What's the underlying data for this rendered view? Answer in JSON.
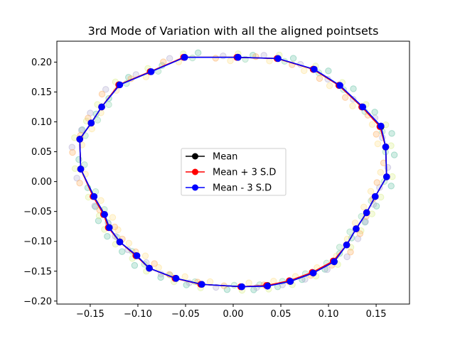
{
  "chart_data": {
    "type": "scatter",
    "title": "3rd Mode of Variation with all the aligned pointsets",
    "xlabel": "",
    "ylabel": "",
    "xlim": [
      -0.185,
      0.185
    ],
    "ylim": [
      -0.205,
      0.235
    ],
    "x_ticks": [
      -0.15,
      -0.1,
      -0.05,
      0.0,
      0.05,
      0.1,
      0.15
    ],
    "x_tick_labels": [
      "−0.15",
      "−0.10",
      "−0.05",
      "0.00",
      "0.05",
      "0.10",
      "0.15"
    ],
    "y_ticks": [
      -0.2,
      -0.15,
      -0.1,
      -0.05,
      0.0,
      0.05,
      0.1,
      0.15,
      0.2
    ],
    "y_tick_labels": [
      "−0.20",
      "−0.15",
      "−0.10",
      "−0.05",
      "0.00",
      "0.05",
      "0.10",
      "0.15",
      "0.20"
    ],
    "grid": false,
    "legend_position": "center",
    "series": [
      {
        "name": "Mean",
        "color": "#000000",
        "marker": "circle",
        "line": true,
        "x": [
          0.005,
          0.047,
          0.084,
          0.111,
          0.135,
          0.155,
          0.16,
          0.161,
          0.149,
          0.14,
          0.129,
          0.119,
          0.106,
          0.084,
          0.06,
          0.036,
          0.009,
          -0.033,
          -0.06,
          -0.088,
          -0.102,
          -0.119,
          -0.13,
          -0.135,
          -0.146,
          -0.16,
          -0.161,
          -0.149,
          -0.138,
          -0.12,
          -0.087,
          -0.051,
          0.005
        ],
        "y": [
          0.208,
          0.206,
          0.188,
          0.161,
          0.125,
          0.092,
          0.058,
          0.008,
          -0.025,
          -0.052,
          -0.079,
          -0.106,
          -0.134,
          -0.153,
          -0.167,
          -0.174,
          -0.176,
          -0.172,
          -0.162,
          -0.145,
          -0.124,
          -0.101,
          -0.077,
          -0.055,
          -0.025,
          0.021,
          0.071,
          0.098,
          0.125,
          0.162,
          0.184,
          0.208,
          0.208
        ]
      },
      {
        "name": "Mean + 3 S.D",
        "color": "#ff0000",
        "marker": "circle",
        "line": true,
        "x": [
          0.004,
          0.046,
          0.084,
          0.111,
          0.135,
          0.154,
          0.16,
          0.161,
          0.149,
          0.14,
          0.129,
          0.119,
          0.105,
          0.083,
          0.059,
          0.035,
          0.008,
          -0.034,
          -0.061,
          -0.088,
          -0.102,
          -0.119,
          -0.131,
          -0.136,
          -0.147,
          -0.16,
          -0.161,
          -0.149,
          -0.138,
          -0.12,
          -0.087,
          -0.052,
          0.004
        ],
        "y": [
          0.208,
          0.206,
          0.188,
          0.161,
          0.125,
          0.092,
          0.058,
          0.008,
          -0.025,
          -0.052,
          -0.079,
          -0.106,
          -0.133,
          -0.152,
          -0.166,
          -0.174,
          -0.176,
          -0.172,
          -0.162,
          -0.145,
          -0.124,
          -0.101,
          -0.077,
          -0.055,
          -0.025,
          0.021,
          0.071,
          0.098,
          0.125,
          0.162,
          0.184,
          0.208,
          0.208
        ]
      },
      {
        "name": "Mean - 3 S.D",
        "color": "#0000ff",
        "marker": "circle",
        "line": true,
        "x": [
          0.005,
          0.047,
          0.085,
          0.112,
          0.136,
          0.155,
          0.16,
          0.161,
          0.149,
          0.14,
          0.129,
          0.119,
          0.106,
          0.084,
          0.06,
          0.036,
          0.009,
          -0.033,
          -0.06,
          -0.088,
          -0.101,
          -0.119,
          -0.13,
          -0.135,
          -0.146,
          -0.16,
          -0.161,
          -0.149,
          -0.138,
          -0.119,
          -0.086,
          -0.051,
          0.005
        ],
        "y": [
          0.208,
          0.206,
          0.188,
          0.161,
          0.125,
          0.093,
          0.058,
          0.008,
          -0.025,
          -0.052,
          -0.079,
          -0.106,
          -0.134,
          -0.153,
          -0.167,
          -0.175,
          -0.176,
          -0.172,
          -0.162,
          -0.145,
          -0.124,
          -0.101,
          -0.077,
          -0.055,
          -0.025,
          0.021,
          0.071,
          0.098,
          0.125,
          0.162,
          0.184,
          0.208,
          0.208
        ]
      }
    ],
    "background_pointsets": {
      "colors": [
        "#66c2a5",
        "#8fd3b0",
        "#d9ef8b",
        "#fee08b",
        "#b2abd2",
        "#fdae61"
      ],
      "opacity": 0.3,
      "offsets_x": [
        -0.012,
        -0.006,
        0.0,
        0.006,
        0.012,
        0.018
      ],
      "offsets_y": [
        0.004,
        -0.003,
        0.006,
        -0.006,
        0.002,
        -0.002
      ]
    }
  }
}
